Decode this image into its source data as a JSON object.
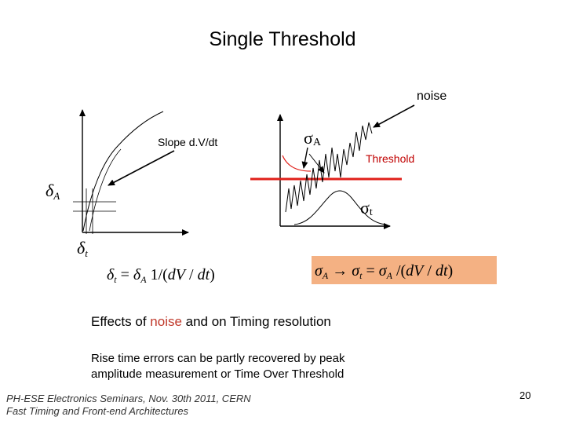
{
  "title": "Single  Threshold",
  "labels": {
    "noise": "noise",
    "slope": "Slope  d.V/dt",
    "threshold": "Threshold",
    "sigma_a": "σA",
    "sigma_t": "σt",
    "delta_a": "δA",
    "delta_t": "δt"
  },
  "formulas": {
    "left": "δt = δA 1/(dV / dt)",
    "right": "σA → σt = σA /(dV / dt)"
  },
  "effects": {
    "prefix": "Effects of ",
    "noise_word": "noise",
    "suffix": " and  on Timing resolution"
  },
  "rise_text": {
    "line1": "Rise time errors can be partly recovered  by peak",
    "line2": "amplitude measurement or Time Over Threshold"
  },
  "footer": {
    "line1": "PH-ESE Electronics Seminars,  Nov. 30th 2011, CERN",
    "line2": "Fast Timing and Front-end Architectures"
  },
  "page_number": "20",
  "colors": {
    "threshold_line": "#e0201a",
    "formula_box": "#f4b183",
    "noise_word": "#c0392b"
  }
}
